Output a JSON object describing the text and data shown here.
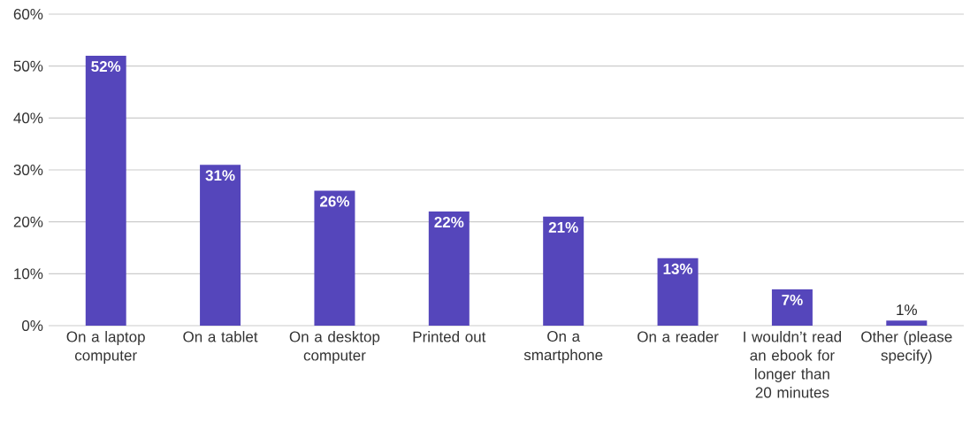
{
  "chart_data": {
    "type": "bar",
    "categories": [
      "On a laptop computer",
      "On a tablet",
      "On a desktop computer",
      "Printed out",
      "On a smartphone",
      "On a reader",
      "I wouldn’t read an ebook for longer than 20 minutes",
      "Other (please specify)"
    ],
    "values": [
      52,
      31,
      26,
      22,
      21,
      13,
      7,
      1
    ],
    "value_labels": [
      "52%",
      "31%",
      "26%",
      "22%",
      "21%",
      "13%",
      "7%",
      "1%"
    ],
    "color": "#5546bb",
    "ylim": [
      0,
      60
    ],
    "yticks": [
      {
        "value": 0,
        "label": "0%"
      },
      {
        "value": 10,
        "label": "10%"
      },
      {
        "value": 20,
        "label": "20%"
      },
      {
        "value": 30,
        "label": "30%"
      },
      {
        "value": 40,
        "label": "40%"
      },
      {
        "value": 50,
        "label": "50%"
      },
      {
        "value": 60,
        "label": "60%"
      }
    ],
    "grid": "y"
  }
}
